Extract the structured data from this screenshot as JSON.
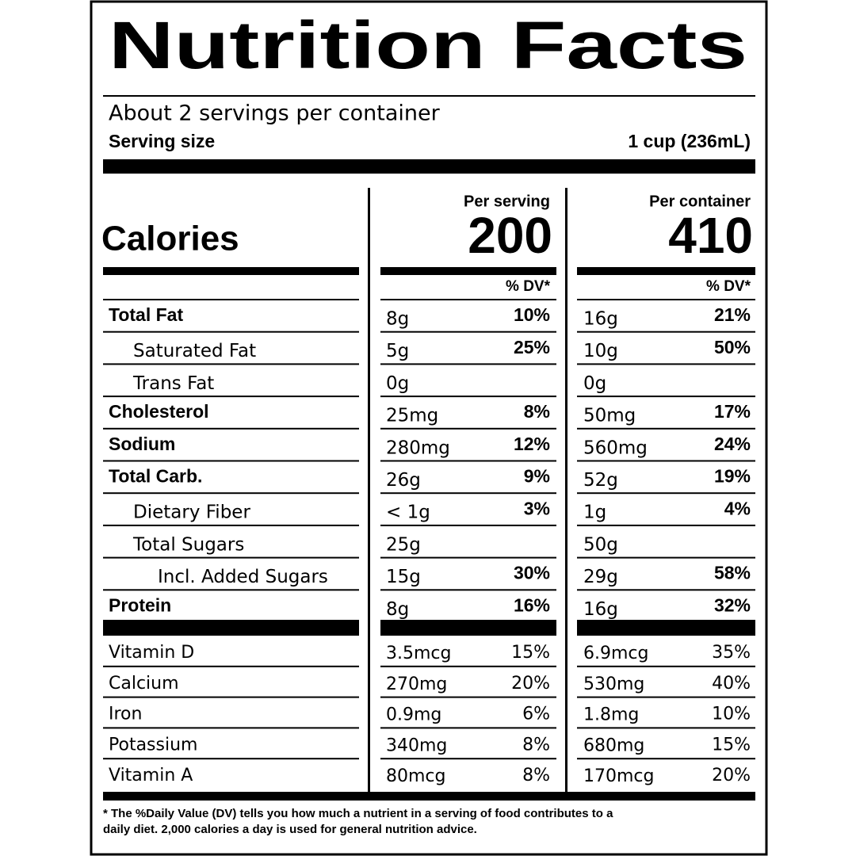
{
  "title": "Nutrition Facts",
  "servings": "About 2 servings per container",
  "serving_size": {
    "label": "Serving size",
    "value": "1 cup (236mL)"
  },
  "calories": {
    "label": "Calories",
    "columns": [
      {
        "header": "Per serving",
        "value": 200
      },
      {
        "header": "Per container",
        "value": 410
      }
    ]
  },
  "dv_header": "% DV*",
  "nutrients": [
    {
      "name": "Total Fat",
      "bold": true,
      "indent": 0,
      "cells": [
        {
          "amount": "8g",
          "dv": "10%"
        },
        {
          "amount": "16g",
          "dv": "21%"
        }
      ]
    },
    {
      "name": "Saturated Fat",
      "bold": false,
      "indent": 1,
      "cells": [
        {
          "amount": "5g",
          "dv": "25%"
        },
        {
          "amount": "10g",
          "dv": "50%"
        }
      ]
    },
    {
      "name": "Trans Fat",
      "bold": false,
      "indent": 1,
      "cells": [
        {
          "amount": "0g"
        },
        {
          "amount": "0g"
        }
      ]
    },
    {
      "name": "Cholesterol",
      "bold": true,
      "indent": 0,
      "cells": [
        {
          "amount": "25mg",
          "dv": "8%"
        },
        {
          "amount": "50mg",
          "dv": "17%"
        }
      ]
    },
    {
      "name": "Sodium",
      "bold": true,
      "indent": 0,
      "cells": [
        {
          "amount": "280mg",
          "dv": "12%"
        },
        {
          "amount": "560mg",
          "dv": "24%"
        }
      ]
    },
    {
      "name": "Total Carb.",
      "bold": true,
      "indent": 0,
      "cells": [
        {
          "amount": "26g",
          "dv": "9%"
        },
        {
          "amount": "52g",
          "dv": "19%"
        }
      ]
    },
    {
      "name": "Dietary Fiber",
      "bold": false,
      "indent": 1,
      "cells": [
        {
          "amount": "< 1g",
          "dv": "3%"
        },
        {
          "amount": "1g",
          "dv": "4%"
        }
      ]
    },
    {
      "name": "Total Sugars",
      "bold": false,
      "indent": 1,
      "cells": [
        {
          "amount": "25g"
        },
        {
          "amount": "50g"
        }
      ]
    },
    {
      "name": "Incl. Added Sugars",
      "bold": false,
      "indent": 2,
      "cells": [
        {
          "amount": "15g",
          "dv": "30%"
        },
        {
          "amount": "29g",
          "dv": "58%"
        }
      ]
    },
    {
      "name": "Protein",
      "bold": true,
      "indent": 0,
      "cells": [
        {
          "amount": "8g",
          "dv": "16%"
        },
        {
          "amount": "16g",
          "dv": "32%"
        }
      ]
    }
  ],
  "vitamins": [
    {
      "name": "Vitamin D",
      "cells": [
        {
          "amount": "3.5mcg",
          "dv": "15%"
        },
        {
          "amount": "6.9mcg",
          "dv": "35%"
        }
      ]
    },
    {
      "name": "Calcium",
      "cells": [
        {
          "amount": "270mg",
          "dv": "20%"
        },
        {
          "amount": "530mg",
          "dv": "40%"
        }
      ]
    },
    {
      "name": "Iron",
      "cells": [
        {
          "amount": "0.9mg",
          "dv": "6%"
        },
        {
          "amount": "1.8mg",
          "dv": "10%"
        }
      ]
    },
    {
      "name": "Potassium",
      "cells": [
        {
          "amount": "340mg",
          "dv": "8%"
        },
        {
          "amount": "680mg",
          "dv": "15%"
        }
      ]
    },
    {
      "name": "Vitamin A",
      "cells": [
        {
          "amount": "80mcg",
          "dv": "8%"
        },
        {
          "amount": "170mcg",
          "dv": "20%"
        }
      ]
    }
  ],
  "footnote": [
    "* The %Daily Value (DV) tells you how much a nutrient in a serving of food contributes to a",
    "daily diet. 2,000 calories a day is used for general nutrition advice."
  ]
}
